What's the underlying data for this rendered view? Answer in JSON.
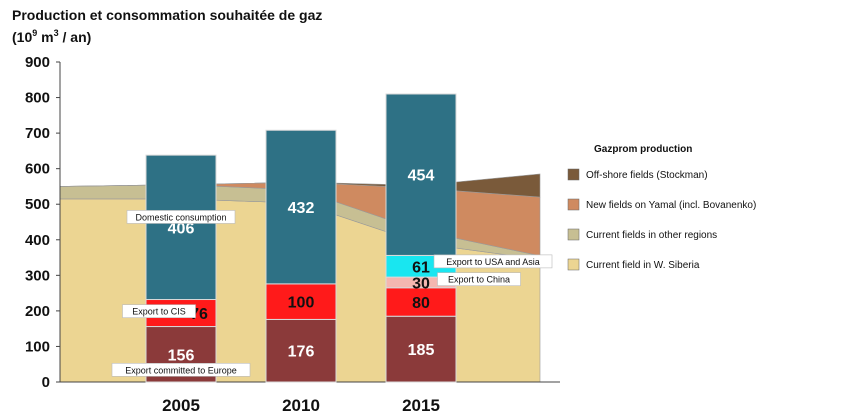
{
  "title_line1": "Production et consommation souhaitée de gaz",
  "title_line2_prefix": "(10",
  "title_line2_exp": "9",
  "title_line2_mid": " m",
  "title_line2_exp2": "3",
  "title_line2_suffix": " / an)",
  "chart_data": {
    "type": "bar",
    "stacked": true,
    "categories": [
      "2005",
      "2010",
      "2015"
    ],
    "ylim": [
      0,
      900
    ],
    "yticks": [
      0,
      100,
      200,
      300,
      400,
      500,
      600,
      700,
      800,
      900
    ],
    "grid": false,
    "series": [
      {
        "name": "Export committed to Europe",
        "color": "#8b3a3a",
        "values": [
          156,
          176,
          185
        ],
        "label_color": "#ffffff"
      },
      {
        "name": "Export to CIS",
        "color": "#ff1a1a",
        "values": [
          76,
          100,
          80
        ],
        "label_color": "#111111"
      },
      {
        "name": "Export to China",
        "color": "#f4b6b0",
        "values": [
          0,
          0,
          30
        ],
        "label_color": "#111111"
      },
      {
        "name": "Export to USA and Asia",
        "color": "#19e6f0",
        "values": [
          0,
          0,
          61
        ],
        "label_color": "#111111"
      },
      {
        "name": "Domestic consumption",
        "color": "#2e7185",
        "values": [
          406,
          432,
          454
        ],
        "label_color": "#ffffff"
      }
    ],
    "annotations": [
      {
        "text": "Domestic consumption",
        "category": "2005",
        "y": 460
      },
      {
        "text": "Export to CIS",
        "category": "2005",
        "y": 195
      },
      {
        "text": "Export committed to Europe",
        "category": "2005",
        "y": 30
      },
      {
        "text": "Export to USA and Asia",
        "category": "2015",
        "y": 335
      },
      {
        "text": "Export to China",
        "category": "2015",
        "y": 285
      }
    ],
    "production_areas": {
      "legend_title": "Gazprom production",
      "x": [
        -1,
        0,
        1,
        2,
        3
      ],
      "layers": [
        {
          "name": "Current field in W. Siberia",
          "color": "#ecd592",
          "values": [
            515,
            515,
            503,
            390,
            345
          ]
        },
        {
          "name": "Current fields in other regions",
          "color": "#c7bf93",
          "values": [
            35,
            40,
            37,
            35,
            10
          ]
        },
        {
          "name": "New fields on Yamal (incl. Bovanenko)",
          "color": "#cf8a60",
          "values": [
            0,
            0,
            22,
            120,
            165
          ]
        },
        {
          "name": "Off-shore fields (Stockman)",
          "color": "#7a5a3a",
          "values": [
            0,
            0,
            0,
            8,
            65
          ]
        }
      ]
    }
  }
}
